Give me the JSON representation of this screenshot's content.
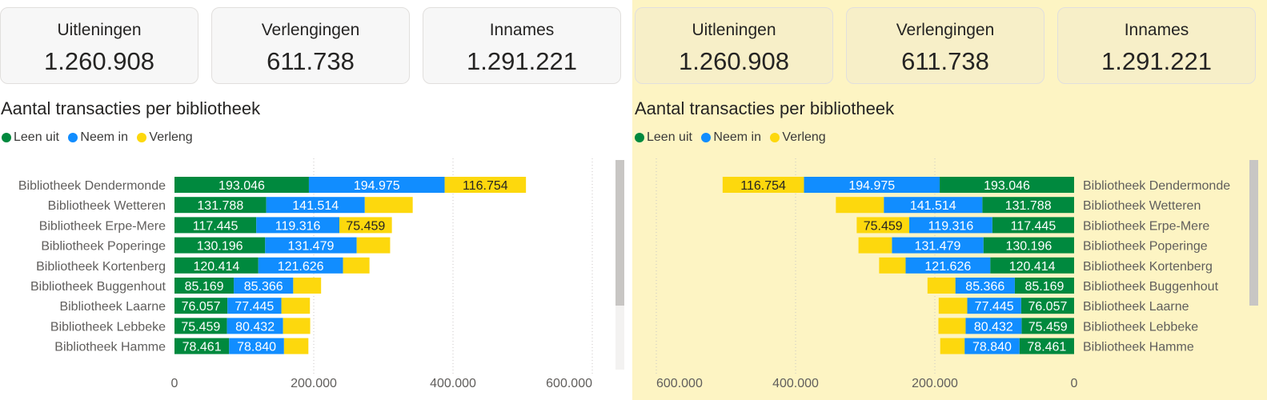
{
  "colors": {
    "leen_uit": "#00893e",
    "neem_in": "#118dff",
    "verleng": "#fdd80d"
  },
  "panels": [
    {
      "cards": [
        {
          "label": "Uitleningen",
          "value": "1.260.908"
        },
        {
          "label": "Verlengingen",
          "value": "611.738"
        },
        {
          "label": "Innames",
          "value": "1.291.221"
        }
      ],
      "chart_title": "Aantal transacties per bibliotheek",
      "legend": [
        {
          "label": "Leen uit",
          "color": "#00893e"
        },
        {
          "label": "Neem in",
          "color": "#118dff"
        },
        {
          "label": "Verleng",
          "color": "#fdd80d"
        }
      ],
      "axis_ticks": [
        "0",
        "200.000",
        "400.000",
        "600.000"
      ]
    },
    {
      "cards": [
        {
          "label": "Uitleningen",
          "value": "1.260.908"
        },
        {
          "label": "Verlengingen",
          "value": "611.738"
        },
        {
          "label": "Innames",
          "value": "1.291.221"
        }
      ],
      "chart_title": "Aantal transacties per bibliotheek",
      "legend": [
        {
          "label": "Leen uit",
          "color": "#00893e"
        },
        {
          "label": "Neem in",
          "color": "#118dff"
        },
        {
          "label": "Verleng",
          "color": "#fdd80d"
        }
      ],
      "axis_ticks": [
        "600.000",
        "400.000",
        "200.000",
        "0"
      ]
    }
  ],
  "chart_data": [
    {
      "type": "bar",
      "orientation": "horizontal-stacked",
      "title": "Aantal transacties per bibliotheek",
      "direction": "left-to-right",
      "categories": [
        "Bibliotheek Dendermonde",
        "Bibliotheek Wetteren",
        "Bibliotheek Erpe-Mere",
        "Bibliotheek Poperinge",
        "Bibliotheek Kortenberg",
        "Bibliotheek Buggenhout",
        "Bibliotheek Laarne",
        "Bibliotheek Lebbeke",
        "Bibliotheek Hamme"
      ],
      "series": [
        {
          "name": "Leen uit",
          "values": [
            193046,
            131788,
            117445,
            130196,
            120414,
            85169,
            76057,
            75459,
            78461
          ]
        },
        {
          "name": "Neem in",
          "values": [
            194975,
            141514,
            119316,
            131479,
            121626,
            85366,
            77445,
            80432,
            78840
          ]
        },
        {
          "name": "Verleng",
          "values": [
            116754,
            68828,
            75459,
            48000,
            38000,
            40000,
            41000,
            39000,
            35000
          ]
        }
      ],
      "xlim": [
        0,
        600000
      ],
      "grid": true,
      "legend_position": "top-left"
    },
    {
      "type": "bar",
      "orientation": "horizontal-stacked",
      "title": "Aantal transacties per bibliotheek",
      "direction": "right-to-left",
      "categories": [
        "Bibliotheek Dendermonde",
        "Bibliotheek Wetteren",
        "Bibliotheek Erpe-Mere",
        "Bibliotheek Poperinge",
        "Bibliotheek Kortenberg",
        "Bibliotheek Buggenhout",
        "Bibliotheek Laarne",
        "Bibliotheek Lebbeke",
        "Bibliotheek Hamme"
      ],
      "series": [
        {
          "name": "Leen uit",
          "values": [
            193046,
            131788,
            117445,
            130196,
            120414,
            85169,
            76057,
            75459,
            78461
          ]
        },
        {
          "name": "Neem in",
          "values": [
            194975,
            141514,
            119316,
            131479,
            121626,
            85366,
            77445,
            80432,
            78840
          ]
        },
        {
          "name": "Verleng",
          "values": [
            116754,
            68828,
            75459,
            48000,
            38000,
            40000,
            41000,
            39000,
            35000
          ]
        }
      ],
      "xlim": [
        0,
        600000
      ],
      "grid": true,
      "legend_position": "top-left"
    }
  ]
}
